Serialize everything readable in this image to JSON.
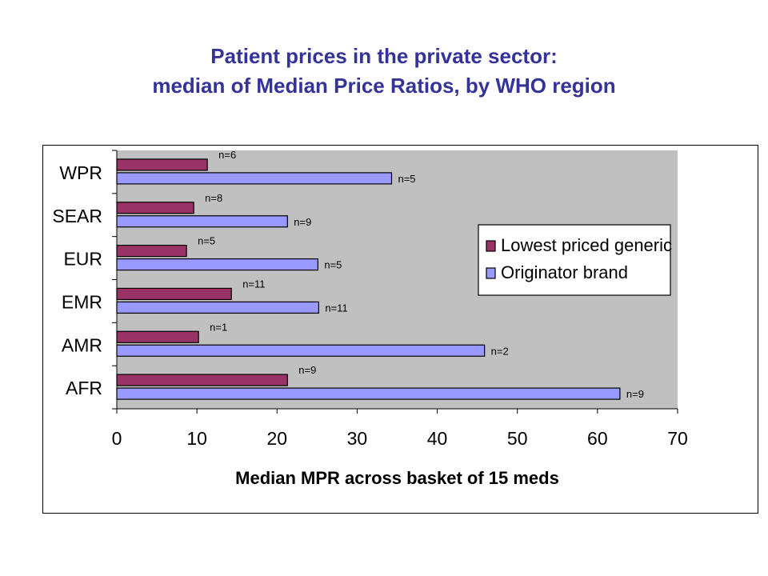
{
  "title_line1": "Patient prices in the private sector:",
  "title_line2": "median of Median Price Ratios, by WHO region",
  "chart_data": {
    "type": "bar",
    "orientation": "horizontal",
    "categories": [
      "WPR",
      "SEAR",
      "EUR",
      "EMR",
      "AMR",
      "AFR"
    ],
    "series": [
      {
        "name": "Lowest priced generic",
        "color": "#993366",
        "values": [
          11.3,
          9.6,
          8.7,
          14.3,
          10.2,
          21.3
        ],
        "labels": [
          "n=6",
          "n=8",
          "n=5",
          "n=11",
          "n=1",
          "n=9"
        ]
      },
      {
        "name": "Originator brand",
        "color": "#9999ff",
        "values": [
          34.3,
          21.3,
          25.1,
          25.2,
          45.9,
          62.8
        ],
        "labels": [
          "n=5",
          "n=9",
          "n=5",
          "n=11",
          "n=2",
          "n=9"
        ]
      }
    ],
    "xlabel": "Median MPR across basket of 15 meds",
    "xlim": [
      0,
      70
    ],
    "xticks": [
      "0",
      "10",
      "20",
      "30",
      "40",
      "50",
      "60",
      "70"
    ],
    "plot_background": "#c0c0c0",
    "legend_position": "right"
  }
}
